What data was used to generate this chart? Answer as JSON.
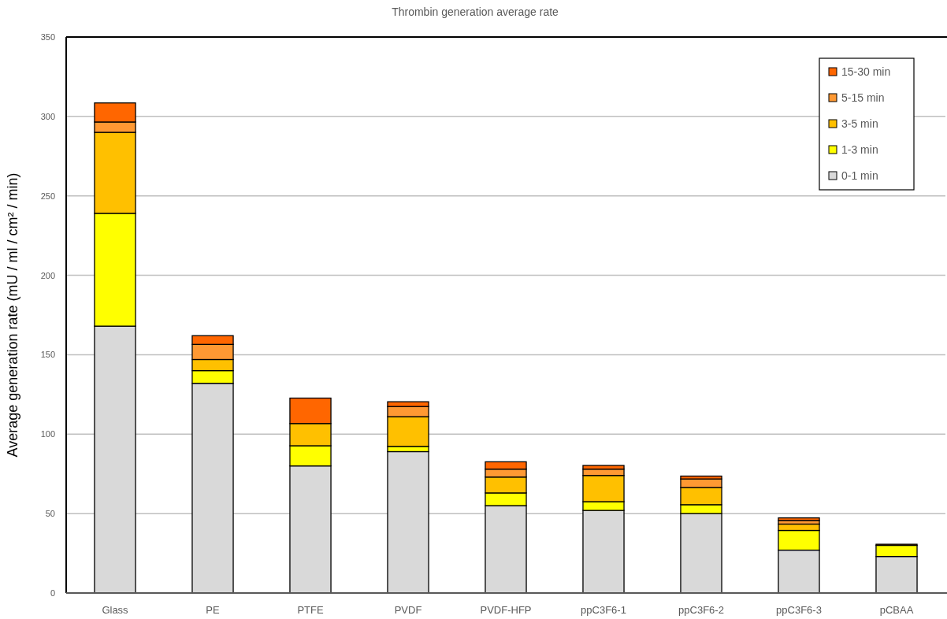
{
  "chart_data": {
    "type": "bar",
    "title": "Thrombin generation average rate",
    "ylabel": "Average generation rate (mU / ml / cm² / min)",
    "categories": [
      "Glass",
      "PE",
      "PTFE",
      "PVDF",
      "PVDF-HFP",
      "ppC3F6-1",
      "ppC3F6-2",
      "ppC3F6-3",
      "pCBAA"
    ],
    "stacked": true,
    "series": [
      {
        "name": "0-1 min",
        "color": "#d9d9d9",
        "values": [
          168,
          132,
          80,
          89,
          55,
          52,
          50,
          27,
          23
        ]
      },
      {
        "name": "1-3 min",
        "color": "#ffff00",
        "values": [
          71,
          8,
          12.7,
          3.3,
          8,
          5.5,
          5.6,
          12.4,
          7
        ]
      },
      {
        "name": "3-5 min",
        "color": "#ffc000",
        "values": [
          51,
          7,
          14,
          18.7,
          10,
          16.5,
          10.8,
          4,
          null
        ]
      },
      {
        "name": "5-15 min",
        "color": "#ff9933",
        "values": [
          6.5,
          9.5,
          null,
          6.4,
          5,
          4,
          5.4,
          2.3,
          null
        ]
      },
      {
        "name": "15-30 min",
        "color": "#ff6600",
        "values": [
          12,
          5.5,
          16,
          3,
          4.6,
          2.3,
          1.8,
          1.6,
          0.7
        ]
      }
    ],
    "ylim": [
      0,
      350
    ],
    "yticks": [
      0,
      50,
      100,
      150,
      200,
      250,
      300,
      350
    ],
    "grid": "y",
    "legend": "top right"
  }
}
